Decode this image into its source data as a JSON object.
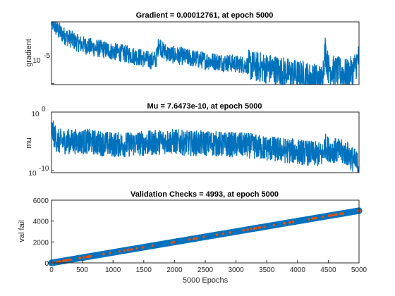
{
  "chart_data": [
    {
      "type": "line",
      "title": "Gradient = 0.00012761, at epoch 5000",
      "ylabel": "gradient",
      "xlabel": "",
      "yscale": "log",
      "xlim": [
        0,
        5000
      ],
      "color": "#0072BD",
      "ytick_label_base": "10",
      "ytick_label_exp": "-5",
      "series": [
        {
          "x": [
            0,
            100,
            200,
            300,
            400,
            500,
            600,
            700,
            800,
            900,
            1000,
            1100,
            1200,
            1300,
            1400,
            1500,
            1600,
            1700,
            1750,
            1800,
            1900,
            2000,
            2100,
            2200,
            2300,
            2400,
            2500,
            2600,
            2700,
            2800,
            2900,
            3000,
            3100,
            3200,
            3300,
            3400,
            3500,
            3600,
            3700,
            3800,
            3900,
            4000,
            4100,
            4200,
            4300,
            4400,
            4450,
            4500,
            4600,
            4700,
            4800,
            4900,
            5000
          ],
          "values": [
            0.003,
            0.0015,
            0.0009,
            0.0007,
            0.0005,
            0.0004,
            0.00035,
            0.0003,
            0.00028,
            0.00025,
            0.00022,
            0.0002,
            0.00018,
            0.00016,
            0.00014,
            0.00012,
            0.0001,
            0.00011,
            0.0005,
            0.00025,
            0.00018,
            0.00016,
            0.00015,
            0.00013,
            0.00012,
            0.00011,
            0.0001,
            9.5e-05,
            9e-05,
            8.5e-05,
            8e-05,
            7.5e-05,
            7e-05,
            6.5e-05,
            6e-05,
            5.5e-05,
            5e-05,
            4.5e-05,
            4e-05,
            3.5e-05,
            3e-05,
            2.8e-05,
            2.5e-05,
            2.2e-05,
            2e-05,
            1.8e-05,
            0.00025,
            5e-05,
            4e-05,
            3.5e-05,
            3e-05,
            4e-05,
            0.00012761
          ]
        }
      ]
    },
    {
      "type": "line",
      "title": "Mu = 7.6473e-10, at epoch 5000",
      "ylabel": "mu",
      "xlabel": "",
      "yscale": "log",
      "xlim": [
        0,
        5000
      ],
      "color": "#0072BD",
      "ytick_labels": [
        {
          "base": "10",
          "exp": "0"
        },
        {
          "base": "10",
          "exp": "-10"
        }
      ],
      "series": [
        {
          "x": [
            0,
            100,
            200,
            400,
            600,
            800,
            1000,
            1200,
            1400,
            1600,
            1800,
            2000,
            2200,
            2400,
            2600,
            2800,
            3000,
            3200,
            3400,
            3600,
            3800,
            4000,
            4200,
            4400,
            4450,
            4500,
            4600,
            4800,
            5000
          ],
          "values": [
            0.001,
            1e-05,
            1e-05,
            1e-05,
            1e-05,
            5e-06,
            3e-06,
            3e-06,
            5e-06,
            5e-06,
            1e-05,
            1e-05,
            5e-06,
            5e-06,
            5e-06,
            3e-06,
            3e-06,
            2e-06,
            1e-06,
            5e-07,
            3e-07,
            2e-07,
            1e-07,
            5e-08,
            2e-06,
            5e-07,
            3e-07,
            1e-07,
            7.6473e-10
          ]
        }
      ]
    },
    {
      "type": "line",
      "title": "Validation Checks = 4993, at epoch 5000",
      "ylabel": "val fail",
      "xlabel": "5000 Epochs",
      "yscale": "linear",
      "xlim": [
        0,
        5000
      ],
      "ylim": [
        0,
        6000
      ],
      "color": "#0072BD",
      "marker_color": "#D95319",
      "xticks": [
        0,
        500,
        1000,
        1500,
        2000,
        2500,
        3000,
        3500,
        4000,
        4500,
        5000
      ],
      "yticks": [
        0,
        2000,
        4000,
        6000
      ],
      "series": [
        {
          "x": [
            0,
            5000
          ],
          "values": [
            0,
            4993
          ]
        }
      ]
    }
  ]
}
